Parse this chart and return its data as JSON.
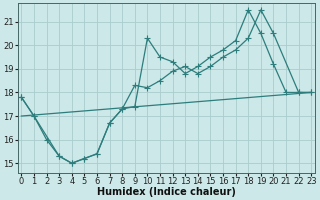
{
  "xlabel": "Humidex (Indice chaleur)",
  "bg_color": "#cce8e8",
  "grid_color": "#aacccc",
  "line_color": "#2d7d7d",
  "xlim": [
    -0.3,
    23.3
  ],
  "ylim": [
    14.6,
    21.8
  ],
  "xticks": [
    0,
    1,
    2,
    3,
    4,
    5,
    6,
    7,
    8,
    9,
    10,
    11,
    12,
    13,
    14,
    15,
    16,
    17,
    18,
    19,
    20,
    21,
    22,
    23
  ],
  "yticks": [
    15,
    16,
    17,
    18,
    19,
    20,
    21
  ],
  "line1_x": [
    0,
    1,
    2,
    3,
    4,
    5,
    6,
    7,
    8,
    9,
    10,
    11,
    12,
    13,
    14,
    15,
    16,
    17,
    18,
    19,
    20,
    21,
    22,
    23
  ],
  "line1_y": [
    17.8,
    17.0,
    16.0,
    15.3,
    15.0,
    15.2,
    15.4,
    16.7,
    17.3,
    17.4,
    20.3,
    19.5,
    19.3,
    18.8,
    19.1,
    19.5,
    19.8,
    20.2,
    21.5,
    20.5,
    19.2,
    18.0,
    18.0,
    18.0
  ],
  "line2_x": [
    0,
    1,
    3,
    4,
    5,
    6,
    7,
    8,
    9,
    10,
    11,
    12,
    13,
    14,
    15,
    16,
    17,
    18,
    19,
    20,
    22,
    23
  ],
  "line2_y": [
    17.8,
    17.0,
    15.3,
    15.0,
    15.2,
    15.4,
    16.7,
    17.3,
    18.3,
    18.2,
    18.5,
    18.9,
    19.1,
    18.8,
    19.1,
    19.5,
    19.8,
    20.3,
    21.5,
    20.5,
    18.0,
    18.0
  ],
  "line3_x": [
    0,
    23
  ],
  "line3_y": [
    17.0,
    18.0
  ],
  "fontsize_label": 7,
  "fontsize_tick": 6,
  "marker_size": 2.0,
  "line_width": 0.9
}
